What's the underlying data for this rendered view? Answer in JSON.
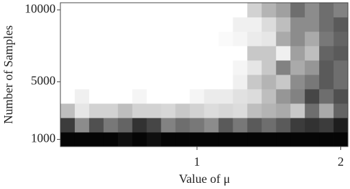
{
  "chart_data": {
    "type": "heatmap",
    "xlabel": "Value of μ",
    "ylabel": "Number of Samples",
    "x": [
      0.1,
      0.2,
      0.3,
      0.4,
      0.5,
      0.6,
      0.7,
      0.8,
      0.9,
      1.0,
      1.1,
      1.2,
      1.3,
      1.4,
      1.5,
      1.6,
      1.7,
      1.8,
      1.9,
      2.0
    ],
    "y": [
      1000,
      2000,
      3000,
      4000,
      5000,
      6000,
      7000,
      8000,
      9000,
      10000
    ],
    "z": [
      [
        5,
        5,
        5,
        5,
        15,
        5,
        15,
        5,
        5,
        5,
        5,
        5,
        5,
        5,
        5,
        5,
        5,
        5,
        5,
        5
      ],
      [
        60,
        140,
        80,
        120,
        100,
        50,
        70,
        130,
        110,
        120,
        140,
        90,
        120,
        90,
        110,
        90,
        60,
        50,
        60,
        30
      ],
      [
        190,
        230,
        210,
        210,
        190,
        210,
        210,
        215,
        200,
        210,
        220,
        215,
        220,
        190,
        180,
        170,
        200,
        110,
        170,
        100
      ],
      [
        255,
        240,
        255,
        255,
        255,
        245,
        255,
        255,
        255,
        245,
        235,
        235,
        225,
        220,
        190,
        150,
        130,
        70,
        110,
        80
      ],
      [
        255,
        255,
        255,
        255,
        255,
        255,
        255,
        255,
        255,
        255,
        255,
        255,
        240,
        200,
        180,
        200,
        140,
        120,
        90,
        110
      ],
      [
        255,
        255,
        255,
        255,
        255,
        255,
        255,
        255,
        255,
        255,
        255,
        255,
        245,
        230,
        200,
        130,
        170,
        150,
        90,
        110
      ],
      [
        255,
        255,
        255,
        255,
        255,
        255,
        255,
        255,
        255,
        255,
        255,
        255,
        255,
        200,
        200,
        240,
        160,
        190,
        100,
        90
      ],
      [
        255,
        255,
        255,
        255,
        255,
        255,
        255,
        255,
        255,
        255,
        255,
        250,
        245,
        235,
        230,
        170,
        140,
        170,
        120,
        100
      ],
      [
        255,
        255,
        255,
        255,
        255,
        255,
        255,
        255,
        255,
        255,
        255,
        255,
        240,
        240,
        220,
        190,
        140,
        140,
        110,
        90
      ],
      [
        255,
        255,
        255,
        255,
        255,
        255,
        255,
        255,
        255,
        255,
        255,
        255,
        255,
        210,
        180,
        160,
        110,
        140,
        110,
        130
      ]
    ],
    "xlim": [
      0.05,
      2.05
    ],
    "ylim": [
      500,
      10500
    ],
    "xticks": [
      1,
      2
    ],
    "yticks": [
      1000,
      5000,
      10000
    ]
  }
}
